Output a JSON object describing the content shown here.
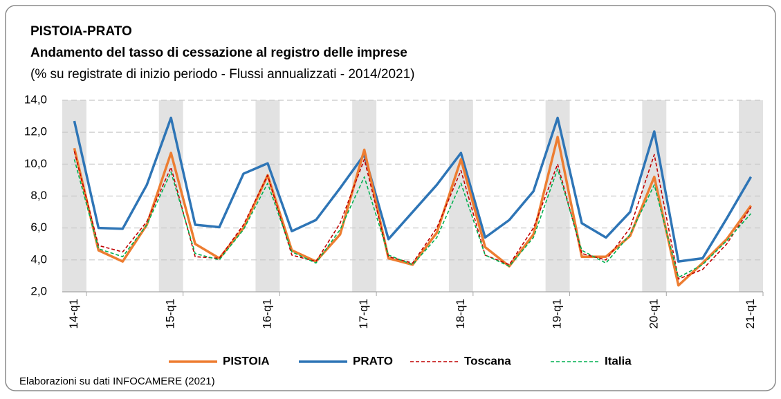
{
  "chart_data": {
    "type": "line",
    "title": "PISTOIA-PRATO",
    "subtitle": "Andamento del tasso di cessazione al registro delle imprese",
    "note": "(% su registrate di inizio periodo - Flussi annualizzati - 2014/2021)",
    "source": "Elaborazioni su dati INFOCAMERE (2021)",
    "categories": [
      "14-q1",
      null,
      null,
      null,
      "15-q1",
      null,
      null,
      null,
      "16-q1",
      null,
      null,
      null,
      "17-q1",
      null,
      null,
      null,
      "18-q1",
      null,
      null,
      null,
      "19-q1",
      null,
      null,
      null,
      "20-q1",
      null,
      null,
      null,
      "21-q1"
    ],
    "series": [
      {
        "name": "PISTOIA",
        "color": "#ed7d31",
        "style": "solid",
        "values": [
          11.0,
          4.6,
          3.9,
          6.2,
          10.7,
          5.0,
          4.1,
          6.0,
          9.3,
          4.6,
          3.9,
          5.6,
          10.9,
          4.1,
          3.7,
          5.7,
          10.3,
          4.8,
          3.6,
          5.6,
          11.7,
          4.2,
          4.2,
          5.5,
          9.2,
          2.4,
          3.8,
          5.3,
          7.4
        ]
      },
      {
        "name": "PRATO",
        "color": "#2e75b6",
        "style": "solid",
        "values": [
          12.7,
          6.0,
          5.95,
          8.7,
          12.9,
          6.2,
          6.05,
          9.4,
          10.05,
          5.8,
          6.5,
          8.5,
          10.6,
          5.3,
          7.0,
          8.7,
          10.7,
          5.4,
          6.5,
          8.3,
          12.9,
          6.3,
          5.4,
          7.0,
          12.05,
          3.9,
          4.1,
          6.6,
          9.2
        ]
      },
      {
        "name": "Toscana",
        "color": "#c00000",
        "style": "dashed",
        "values": [
          10.8,
          4.9,
          4.5,
          6.4,
          9.8,
          4.2,
          4.1,
          6.2,
          9.3,
          4.3,
          3.9,
          6.3,
          10.3,
          4.2,
          3.8,
          6.0,
          9.6,
          4.3,
          3.7,
          6.0,
          10.0,
          4.4,
          4.0,
          6.0,
          10.6,
          2.8,
          3.4,
          5.0,
          7.3
        ]
      },
      {
        "name": "Italia",
        "color": "#00b050",
        "style": "dashed",
        "values": [
          10.3,
          4.7,
          4.2,
          6.2,
          9.5,
          4.4,
          4.0,
          5.9,
          8.8,
          4.5,
          3.8,
          5.9,
          9.2,
          4.3,
          3.7,
          5.4,
          8.8,
          4.3,
          3.6,
          5.4,
          9.7,
          4.6,
          3.8,
          5.6,
          8.7,
          2.9,
          3.7,
          5.2,
          6.9
        ]
      }
    ],
    "ylim": [
      2,
      14
    ],
    "yticks": [
      {
        "value": 2,
        "label": "2,0"
      },
      {
        "value": 4,
        "label": "4,0"
      },
      {
        "value": 6,
        "label": "6,0"
      },
      {
        "value": 8,
        "label": "8,0"
      },
      {
        "value": 10,
        "label": "10,0"
      },
      {
        "value": 12,
        "label": "12,0"
      },
      {
        "value": 14,
        "label": "14,0"
      }
    ],
    "grid": true,
    "legend": "bottom"
  }
}
